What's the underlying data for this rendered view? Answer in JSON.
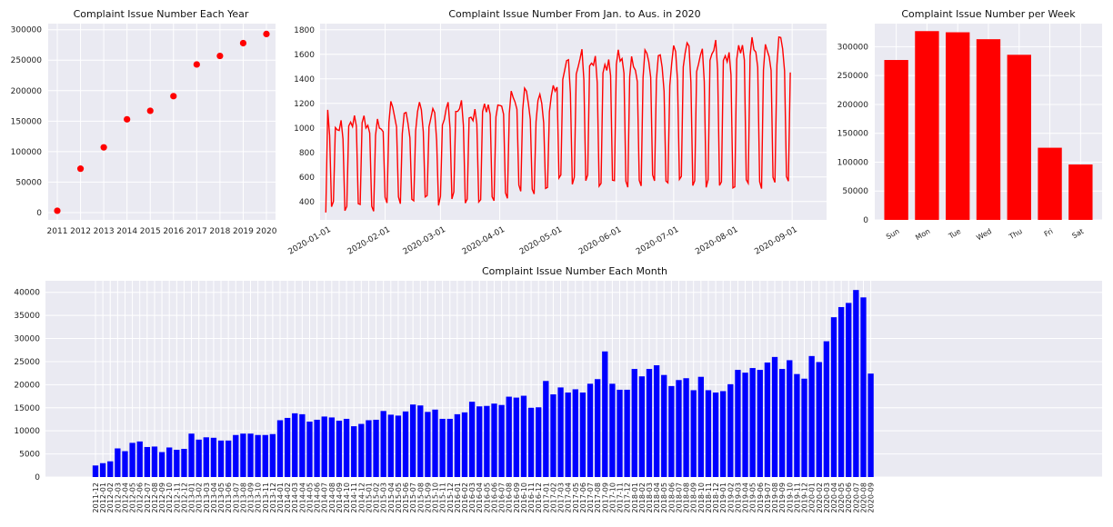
{
  "charts": [
    {
      "type": "scatter",
      "title": "Complaint Issue Number Each Year",
      "x": [
        "2011",
        "2012",
        "2013",
        "2014",
        "2015",
        "2016",
        "2017",
        "2018",
        "2019",
        "2020"
      ],
      "values": [
        3000,
        72000,
        107000,
        153000,
        167000,
        191000,
        243000,
        257000,
        278000,
        293000
      ],
      "yticks": [
        0,
        50000,
        100000,
        150000,
        200000,
        250000,
        300000
      ],
      "ylim": [
        -12000,
        310000
      ],
      "color": "#ff0000"
    },
    {
      "type": "line",
      "title": "Complaint Issue Number From Jan. to Aus. in 2020",
      "x_start": "2020-01-01",
      "x_end": "2020-08-31",
      "xticks": [
        "2020-01-01",
        "2020-02-01",
        "2020-03-01",
        "2020-04-01",
        "2020-05-01",
        "2020-06-01",
        "2020-07-01",
        "2020-08-01",
        "2020-09-01"
      ],
      "yticks": [
        400,
        600,
        800,
        1000,
        1200,
        1400,
        1600,
        1800
      ],
      "ylim": [
        250,
        1850
      ],
      "weekly_pattern": "weekday values high, weekend values low",
      "level_by_month": [
        {
          "month": "2020-01",
          "high": 1050,
          "low": 380
        },
        {
          "month": "2020-02",
          "high": 1120,
          "low": 400
        },
        {
          "month": "2020-03",
          "high": 1150,
          "low": 430
        },
        {
          "month": "2020-04",
          "high": 1250,
          "low": 480
        },
        {
          "month": "2020-05",
          "high": 1550,
          "low": 580
        },
        {
          "month": "2020-06",
          "high": 1560,
          "low": 560
        },
        {
          "month": "2020-07",
          "high": 1620,
          "low": 550
        },
        {
          "month": "2020-08",
          "high": 1660,
          "low": 560
        }
      ],
      "color": "#ff0000"
    },
    {
      "type": "bar",
      "title": "Complaint Issue Number per Week",
      "categories": [
        "Sun",
        "Mon",
        "Tue",
        "Wed",
        "Thu",
        "Fri",
        "Sat"
      ],
      "values": [
        277000,
        327000,
        325000,
        313000,
        286000,
        125000,
        96000
      ],
      "yticks": [
        0,
        50000,
        100000,
        150000,
        200000,
        250000,
        300000
      ],
      "ylim": [
        0,
        340000
      ],
      "color": "#ff0000"
    },
    {
      "type": "bar",
      "title": "Complaint Issue Number Each Month",
      "categories": [
        "2011-12",
        "2012-01",
        "2012-02",
        "2012-03",
        "2012-04",
        "2012-05",
        "2012-06",
        "2012-07",
        "2012-08",
        "2012-09",
        "2012-10",
        "2012-11",
        "2012-12",
        "2013-01",
        "2013-02",
        "2013-03",
        "2013-04",
        "2013-05",
        "2013-06",
        "2013-07",
        "2013-08",
        "2013-09",
        "2013-10",
        "2013-11",
        "2013-12",
        "2014-01",
        "2014-02",
        "2014-03",
        "2014-04",
        "2014-05",
        "2014-06",
        "2014-07",
        "2014-08",
        "2014-09",
        "2014-10",
        "2014-11",
        "2014-12",
        "2015-01",
        "2015-02",
        "2015-03",
        "2015-04",
        "2015-05",
        "2015-06",
        "2015-07",
        "2015-08",
        "2015-09",
        "2015-10",
        "2015-11",
        "2015-12",
        "2016-01",
        "2016-02",
        "2016-03",
        "2016-04",
        "2016-05",
        "2016-06",
        "2016-07",
        "2016-08",
        "2016-09",
        "2016-10",
        "2016-11",
        "2016-12",
        "2017-01",
        "2017-02",
        "2017-03",
        "2017-04",
        "2017-05",
        "2017-06",
        "2017-07",
        "2017-08",
        "2017-09",
        "2017-10",
        "2017-11",
        "2017-12",
        "2018-01",
        "2018-02",
        "2018-03",
        "2018-04",
        "2018-05",
        "2018-06",
        "2018-07",
        "2018-08",
        "2018-09",
        "2018-10",
        "2018-11",
        "2018-12",
        "2019-01",
        "2019-02",
        "2019-03",
        "2019-04",
        "2019-05",
        "2019-06",
        "2019-07",
        "2019-08",
        "2019-09",
        "2019-10",
        "2019-11",
        "2019-12",
        "2020-01",
        "2020-02",
        "2020-03",
        "2020-04",
        "2020-05",
        "2020-06",
        "2020-07",
        "2020-08",
        "2020-09"
      ],
      "values": [
        2500,
        3000,
        3400,
        6200,
        5600,
        7400,
        7700,
        6500,
        6600,
        5400,
        6400,
        5900,
        6100,
        9400,
        8100,
        8600,
        8500,
        7900,
        7900,
        9100,
        9400,
        9400,
        9100,
        9100,
        9300,
        12300,
        12800,
        13800,
        13600,
        12000,
        12400,
        13100,
        12900,
        12200,
        12600,
        11000,
        11500,
        12300,
        12400,
        14300,
        13500,
        13300,
        14200,
        15700,
        15500,
        14100,
        14600,
        12600,
        12600,
        13600,
        14000,
        16300,
        15300,
        15400,
        15900,
        15600,
        17400,
        17200,
        17600,
        15000,
        15100,
        20800,
        17900,
        19400,
        18300,
        19000,
        18300,
        20200,
        21200,
        27200,
        20200,
        18900,
        18900,
        23400,
        21800,
        23400,
        24200,
        22100,
        19700,
        21000,
        21400,
        18800,
        21700,
        18800,
        18300,
        18600,
        20100,
        23200,
        22600,
        23600,
        23200,
        24800,
        26000,
        23400,
        25300,
        22300,
        21300,
        26200,
        24900,
        29400,
        34600,
        36800,
        37700,
        40500,
        38900,
        22400
      ],
      "yticks": [
        0,
        5000,
        10000,
        15000,
        20000,
        25000,
        30000,
        35000,
        40000
      ],
      "ylim": [
        0,
        42500
      ],
      "color": "#0000ff"
    }
  ]
}
